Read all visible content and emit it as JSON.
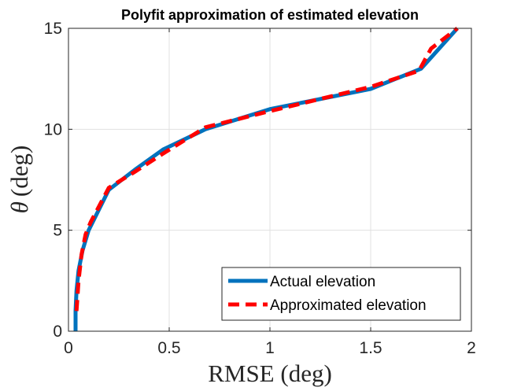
{
  "chart_data": {
    "type": "line",
    "title": "Polyfit approximation of estimated elevation",
    "xlabel": "RMSE (deg)",
    "ylabel_symbol": "θ",
    "ylabel_unit": "(deg)",
    "xlim": [
      0,
      2
    ],
    "ylim": [
      0,
      15
    ],
    "xticks": [
      0,
      0.5,
      1,
      1.5,
      2
    ],
    "xtick_labels": [
      "0",
      "0.5",
      "1",
      "1.5",
      "2"
    ],
    "yticks": [
      0,
      5,
      10,
      15
    ],
    "ytick_labels": [
      "0",
      "5",
      "10",
      "15"
    ],
    "grid": true,
    "legend_position": "bottom-right",
    "series": [
      {
        "name": "Actual elevation",
        "color": "#0072BD",
        "style": "solid",
        "x": [
          0.035,
          0.035,
          0.04,
          0.05,
          0.07,
          0.1,
          0.2,
          0.33,
          0.47,
          0.68,
          1.0,
          1.5,
          1.75,
          1.93
        ],
        "y": [
          0,
          1,
          2,
          3,
          4,
          5,
          7,
          8,
          9,
          10,
          11,
          12,
          13,
          15
        ]
      },
      {
        "name": "Approximated elevation",
        "color": "#FF0000",
        "style": "dashed",
        "x": [
          0.04,
          0.05,
          0.065,
          0.085,
          0.11,
          0.2,
          0.33,
          0.47,
          0.68,
          1.0,
          1.5,
          1.74,
          1.8,
          1.93
        ],
        "y": [
          1,
          2.5,
          3.8,
          4.8,
          5.4,
          7.1,
          7.9,
          8.8,
          10.1,
          10.9,
          12.1,
          12.9,
          14,
          15
        ]
      }
    ]
  }
}
